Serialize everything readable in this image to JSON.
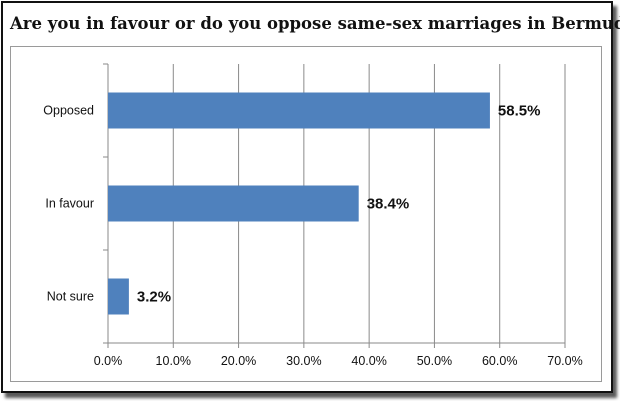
{
  "chart_data": {
    "type": "bar",
    "orientation": "horizontal",
    "title": "Are you in favour or do you oppose same-sex marriages in Bermuda?",
    "categories": [
      "Opposed",
      "In favour",
      "Not sure"
    ],
    "values": [
      58.5,
      38.4,
      3.2
    ],
    "data_labels": [
      "58.5%",
      "38.4%",
      "3.2%"
    ],
    "xlim": [
      0,
      70
    ],
    "xticks": [
      "0.0%",
      "10.0%",
      "20.0%",
      "30.0%",
      "40.0%",
      "50.0%",
      "60.0%",
      "70.0%"
    ],
    "grid": true,
    "bar_color": "#4f81bd",
    "grid_color": "#8a8a8a"
  }
}
